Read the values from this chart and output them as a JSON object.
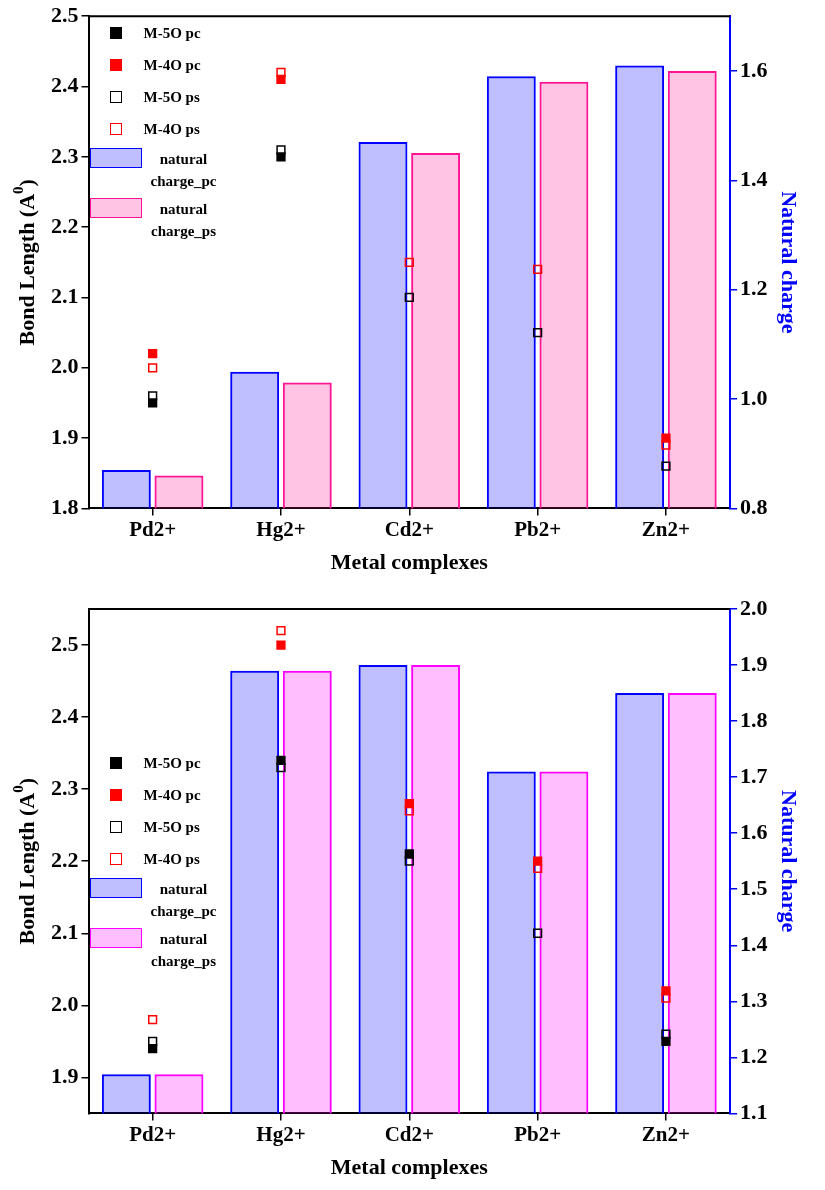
{
  "chart_data": [
    {
      "type": "bar",
      "xlabel": "Metal complexes",
      "ylabel": "Bond Length (A$^{0}$)",
      "y2label": "Natural charge",
      "categories": [
        "Pd2+",
        "Hg2+",
        "Cd2+",
        "Pb2+",
        "Zn2+"
      ],
      "ylim": [
        1.8,
        2.5
      ],
      "yticks": [
        1.8,
        1.9,
        {
          "value": 2,
          "label": "2.0"
        },
        2.1,
        2.2,
        2.3,
        2.4,
        2.5
      ],
      "y2lim": [
        0.8,
        1.7
      ],
      "y2ticks": [
        0.8,
        {
          "value": 1,
          "label": "1.0"
        },
        1.2,
        1.4,
        1.6
      ],
      "grid": false,
      "legend": "top left",
      "series": [
        {
          "name": "M-5O pc",
          "type": "scatter",
          "marker": "square",
          "color": "#000000",
          "values": [
            1.95,
            2.3,
            null,
            null,
            null
          ]
        },
        {
          "name": "M-4O pc",
          "type": "scatter",
          "marker": "square",
          "color": "#ff0000",
          "values": [
            2.02,
            2.41,
            null,
            null,
            1.9
          ]
        },
        {
          "name": "M-5O ps",
          "type": "scatter",
          "marker": "square-open",
          "color": "#000000",
          "values": [
            1.96,
            2.31,
            2.1,
            2.05,
            1.86
          ]
        },
        {
          "name": "M-4O ps",
          "type": "scatter",
          "marker": "square-open",
          "color": "#ff0000",
          "values": [
            2.0,
            2.42,
            2.15,
            2.14,
            1.89
          ]
        },
        {
          "name": "natural charge_pc",
          "axis": "y2",
          "color": "#0000ff",
          "values": [
            0.87,
            1.05,
            1.47,
            1.59,
            1.61
          ]
        },
        {
          "name": "natural charge_ps",
          "axis": "y2",
          "color": "#ff1493",
          "values": [
            0.86,
            1.03,
            1.45,
            1.58,
            1.6
          ]
        }
      ]
    },
    {
      "type": "bar",
      "xlabel": "Metal complexes",
      "ylabel": "Bond Length (A$^{0}$)",
      "y2label": "Natural charge",
      "categories": [
        "Pd2+",
        "Hg2+",
        "Cd2+",
        "Pb2+",
        "Zn2+"
      ],
      "ylim": [
        1.85,
        2.55
      ],
      "yticks": [
        1.9,
        {
          "value": 2,
          "label": "2.0"
        },
        2.1,
        2.2,
        2.3,
        2.4,
        2.5
      ],
      "y2lim": [
        1.1,
        2.0
      ],
      "y2ticks": [
        1.1,
        1.2,
        1.3,
        1.4,
        1.5,
        1.6,
        1.7,
        1.8,
        1.9,
        {
          "value": 2,
          "label": "2.0"
        }
      ],
      "grid": false,
      "legend": "left",
      "series": [
        {
          "name": "M-5O pc",
          "type": "scatter",
          "marker": "square",
          "color": "#000000",
          "values": [
            1.94,
            2.34,
            2.21,
            null,
            1.95
          ]
        },
        {
          "name": "M-4O pc",
          "type": "scatter",
          "marker": "square",
          "color": "#ff0000",
          "values": [
            null,
            2.5,
            2.28,
            2.2,
            2.02
          ]
        },
        {
          "name": "M-5O ps",
          "type": "scatter",
          "marker": "square-open",
          "color": "#000000",
          "values": [
            1.95,
            2.33,
            2.2,
            2.1,
            1.96
          ]
        },
        {
          "name": "M-4O ps",
          "type": "scatter",
          "marker": "square-open",
          "color": "#ff0000",
          "values": [
            1.98,
            2.52,
            2.27,
            2.19,
            2.01
          ]
        },
        {
          "name": "natural charge_pc",
          "axis": "y2",
          "color": "#0000ff",
          "values": [
            1.17,
            1.89,
            1.9,
            1.71,
            1.85
          ]
        },
        {
          "name": "natural charge_ps",
          "axis": "y2",
          "color": "#ff00ff",
          "values": [
            1.17,
            1.89,
            1.9,
            1.71,
            1.85
          ]
        }
      ]
    }
  ]
}
